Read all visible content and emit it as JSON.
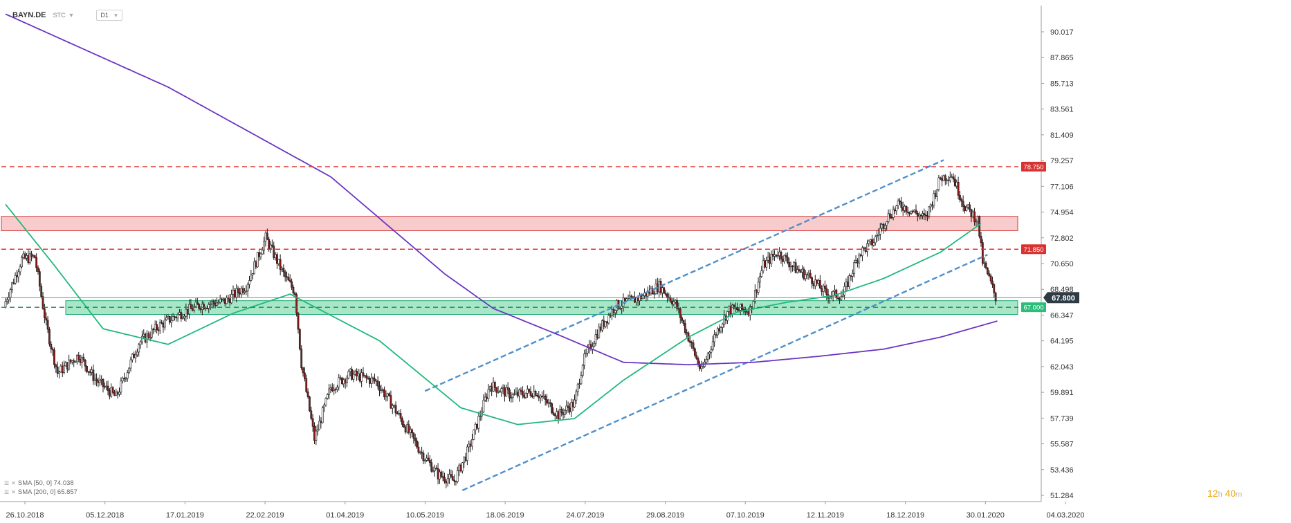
{
  "header": {
    "symbol": "BAYN.DE",
    "feed": "STC",
    "timeframe": "D1"
  },
  "legend": [
    {
      "label": "SMA [50, 0] 74.038"
    },
    {
      "label": "SMA [200, 0] 65.857"
    }
  ],
  "timer": {
    "hours": "12",
    "h_unit": "h",
    "minutes": "40",
    "m_unit": "m"
  },
  "colors": {
    "up": "#ffffff",
    "down": "#8b1a1a",
    "sma50": "#1fb87c",
    "sma200": "#6a35c2",
    "channel": "#4f8fc9",
    "resistance": "#e03030",
    "price_tag": "#2e3b45",
    "support_zone": "#5fd49a",
    "resistance_zone": "#f3a3a3"
  },
  "chart_data": {
    "type": "candlestick",
    "y_ticks": [
      "90.017",
      "87.865",
      "85.713",
      "83.561",
      "81.409",
      "79.257",
      "77.106",
      "74.954",
      "72.802",
      "70.650",
      "68.498",
      "66.347",
      "64.195",
      "62.043",
      "59.891",
      "57.739",
      "55.587",
      "53.436",
      "51.284"
    ],
    "x_ticks": [
      "26.10.2018",
      "05.12.2018",
      "17.01.2019",
      "22.02.2019",
      "01.04.2019",
      "10.05.2019",
      "18.06.2019",
      "24.07.2019",
      "29.08.2019",
      "07.10.2019",
      "12.11.2019",
      "18.12.2019",
      "30.01.2020",
      "04.03.2020"
    ],
    "ylim": [
      50.4,
      92.0
    ],
    "last_price": "67.800",
    "levels": [
      {
        "value": 78.75,
        "label": "78.750",
        "style": "dashed-red"
      },
      {
        "value": 71.85,
        "label": "71.850",
        "style": "dashed-red"
      },
      {
        "value": 67.0,
        "label": "67.000",
        "style": "dashed-green"
      }
    ],
    "zones": [
      {
        "name": "resistance",
        "from": 73.4,
        "to": 74.6
      },
      {
        "name": "support",
        "from": 66.4,
        "to": 67.55
      }
    ],
    "sma50_anchors": [
      [
        0,
        75.6
      ],
      [
        30,
        70.5
      ],
      [
        60,
        65.2
      ],
      [
        100,
        63.9
      ],
      [
        140,
        66.5
      ],
      [
        175,
        68.1
      ],
      [
        230,
        64.2
      ],
      [
        280,
        58.6
      ],
      [
        315,
        57.2
      ],
      [
        350,
        57.7
      ],
      [
        380,
        60.9
      ],
      [
        420,
        64.5
      ],
      [
        450,
        66.6
      ],
      [
        480,
        67.4
      ],
      [
        510,
        68.0
      ],
      [
        540,
        69.4
      ],
      [
        575,
        71.6
      ],
      [
        600,
        74.0
      ]
    ],
    "sma200_anchors": [
      [
        0,
        91.5
      ],
      [
        100,
        85.4
      ],
      [
        200,
        77.9
      ],
      [
        270,
        69.8
      ],
      [
        300,
        66.9
      ],
      [
        340,
        64.7
      ],
      [
        380,
        62.4
      ],
      [
        420,
        62.2
      ],
      [
        460,
        62.4
      ],
      [
        500,
        62.9
      ],
      [
        540,
        63.5
      ],
      [
        575,
        64.5
      ],
      [
        610,
        65.85
      ]
    ],
    "channel": {
      "lower": [
        [
          281,
          51.7
        ],
        [
          604,
          71.4
        ]
      ],
      "upper": [
        [
          258,
          60.0
        ],
        [
          577,
          79.3
        ]
      ]
    }
  }
}
